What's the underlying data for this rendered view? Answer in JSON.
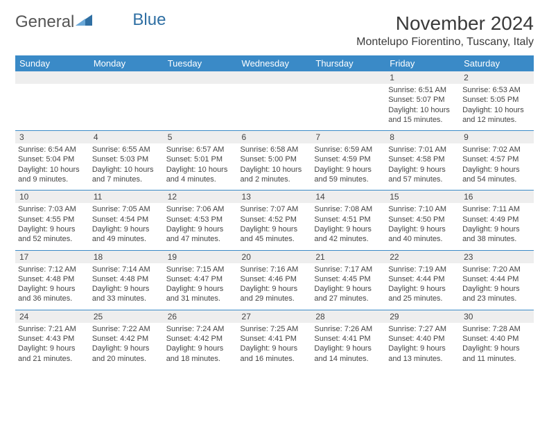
{
  "logo": {
    "text1": "General",
    "text2": "Blue"
  },
  "title": "November 2024",
  "location": "Montelupo Fiorentino, Tuscany, Italy",
  "colors": {
    "header_bg": "#3a8ac7",
    "header_fg": "#ffffff",
    "daynum_bg": "#eeeeee",
    "rule": "#3a8ac7"
  },
  "dow": [
    "Sunday",
    "Monday",
    "Tuesday",
    "Wednesday",
    "Thursday",
    "Friday",
    "Saturday"
  ],
  "weeks": [
    [
      null,
      null,
      null,
      null,
      null,
      {
        "n": "1",
        "sr": "Sunrise: 6:51 AM",
        "ss": "Sunset: 5:07 PM",
        "dl": "Daylight: 10 hours and 15 minutes."
      },
      {
        "n": "2",
        "sr": "Sunrise: 6:53 AM",
        "ss": "Sunset: 5:05 PM",
        "dl": "Daylight: 10 hours and 12 minutes."
      }
    ],
    [
      {
        "n": "3",
        "sr": "Sunrise: 6:54 AM",
        "ss": "Sunset: 5:04 PM",
        "dl": "Daylight: 10 hours and 9 minutes."
      },
      {
        "n": "4",
        "sr": "Sunrise: 6:55 AM",
        "ss": "Sunset: 5:03 PM",
        "dl": "Daylight: 10 hours and 7 minutes."
      },
      {
        "n": "5",
        "sr": "Sunrise: 6:57 AM",
        "ss": "Sunset: 5:01 PM",
        "dl": "Daylight: 10 hours and 4 minutes."
      },
      {
        "n": "6",
        "sr": "Sunrise: 6:58 AM",
        "ss": "Sunset: 5:00 PM",
        "dl": "Daylight: 10 hours and 2 minutes."
      },
      {
        "n": "7",
        "sr": "Sunrise: 6:59 AM",
        "ss": "Sunset: 4:59 PM",
        "dl": "Daylight: 9 hours and 59 minutes."
      },
      {
        "n": "8",
        "sr": "Sunrise: 7:01 AM",
        "ss": "Sunset: 4:58 PM",
        "dl": "Daylight: 9 hours and 57 minutes."
      },
      {
        "n": "9",
        "sr": "Sunrise: 7:02 AM",
        "ss": "Sunset: 4:57 PM",
        "dl": "Daylight: 9 hours and 54 minutes."
      }
    ],
    [
      {
        "n": "10",
        "sr": "Sunrise: 7:03 AM",
        "ss": "Sunset: 4:55 PM",
        "dl": "Daylight: 9 hours and 52 minutes."
      },
      {
        "n": "11",
        "sr": "Sunrise: 7:05 AM",
        "ss": "Sunset: 4:54 PM",
        "dl": "Daylight: 9 hours and 49 minutes."
      },
      {
        "n": "12",
        "sr": "Sunrise: 7:06 AM",
        "ss": "Sunset: 4:53 PM",
        "dl": "Daylight: 9 hours and 47 minutes."
      },
      {
        "n": "13",
        "sr": "Sunrise: 7:07 AM",
        "ss": "Sunset: 4:52 PM",
        "dl": "Daylight: 9 hours and 45 minutes."
      },
      {
        "n": "14",
        "sr": "Sunrise: 7:08 AM",
        "ss": "Sunset: 4:51 PM",
        "dl": "Daylight: 9 hours and 42 minutes."
      },
      {
        "n": "15",
        "sr": "Sunrise: 7:10 AM",
        "ss": "Sunset: 4:50 PM",
        "dl": "Daylight: 9 hours and 40 minutes."
      },
      {
        "n": "16",
        "sr": "Sunrise: 7:11 AM",
        "ss": "Sunset: 4:49 PM",
        "dl": "Daylight: 9 hours and 38 minutes."
      }
    ],
    [
      {
        "n": "17",
        "sr": "Sunrise: 7:12 AM",
        "ss": "Sunset: 4:48 PM",
        "dl": "Daylight: 9 hours and 36 minutes."
      },
      {
        "n": "18",
        "sr": "Sunrise: 7:14 AM",
        "ss": "Sunset: 4:48 PM",
        "dl": "Daylight: 9 hours and 33 minutes."
      },
      {
        "n": "19",
        "sr": "Sunrise: 7:15 AM",
        "ss": "Sunset: 4:47 PM",
        "dl": "Daylight: 9 hours and 31 minutes."
      },
      {
        "n": "20",
        "sr": "Sunrise: 7:16 AM",
        "ss": "Sunset: 4:46 PM",
        "dl": "Daylight: 9 hours and 29 minutes."
      },
      {
        "n": "21",
        "sr": "Sunrise: 7:17 AM",
        "ss": "Sunset: 4:45 PM",
        "dl": "Daylight: 9 hours and 27 minutes."
      },
      {
        "n": "22",
        "sr": "Sunrise: 7:19 AM",
        "ss": "Sunset: 4:44 PM",
        "dl": "Daylight: 9 hours and 25 minutes."
      },
      {
        "n": "23",
        "sr": "Sunrise: 7:20 AM",
        "ss": "Sunset: 4:44 PM",
        "dl": "Daylight: 9 hours and 23 minutes."
      }
    ],
    [
      {
        "n": "24",
        "sr": "Sunrise: 7:21 AM",
        "ss": "Sunset: 4:43 PM",
        "dl": "Daylight: 9 hours and 21 minutes."
      },
      {
        "n": "25",
        "sr": "Sunrise: 7:22 AM",
        "ss": "Sunset: 4:42 PM",
        "dl": "Daylight: 9 hours and 20 minutes."
      },
      {
        "n": "26",
        "sr": "Sunrise: 7:24 AM",
        "ss": "Sunset: 4:42 PM",
        "dl": "Daylight: 9 hours and 18 minutes."
      },
      {
        "n": "27",
        "sr": "Sunrise: 7:25 AM",
        "ss": "Sunset: 4:41 PM",
        "dl": "Daylight: 9 hours and 16 minutes."
      },
      {
        "n": "28",
        "sr": "Sunrise: 7:26 AM",
        "ss": "Sunset: 4:41 PM",
        "dl": "Daylight: 9 hours and 14 minutes."
      },
      {
        "n": "29",
        "sr": "Sunrise: 7:27 AM",
        "ss": "Sunset: 4:40 PM",
        "dl": "Daylight: 9 hours and 13 minutes."
      },
      {
        "n": "30",
        "sr": "Sunrise: 7:28 AM",
        "ss": "Sunset: 4:40 PM",
        "dl": "Daylight: 9 hours and 11 minutes."
      }
    ]
  ]
}
